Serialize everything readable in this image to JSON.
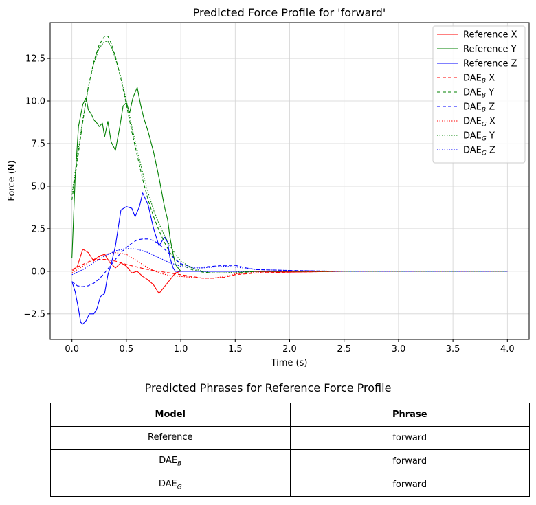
{
  "chart_data": {
    "type": "line",
    "title": "Predicted Force Profile for 'forward'",
    "xlabel": "Time (s)",
    "ylabel": "Force (N)",
    "xlim": [
      -0.2,
      4.2
    ],
    "ylim": [
      -4.0,
      14.6
    ],
    "xticks": [
      0.0,
      0.5,
      1.0,
      1.5,
      2.0,
      2.5,
      3.0,
      3.5,
      4.0
    ],
    "xtick_labels": [
      "0.0",
      "0.5",
      "1.0",
      "1.5",
      "2.0",
      "2.5",
      "3.0",
      "3.5",
      "4.0"
    ],
    "yticks": [
      -2.5,
      0.0,
      2.5,
      5.0,
      7.5,
      10.0,
      12.5
    ],
    "ytick_labels": [
      "−2.5",
      "0.0",
      "2.5",
      "5.0",
      "7.5",
      "10.0",
      "12.5"
    ],
    "grid": true,
    "legend_position": "top-right",
    "series": [
      {
        "name": "Reference X",
        "legend_main": "Reference X",
        "legend_sub": "",
        "legend_tail": "",
        "color": "#ff0000",
        "style": "solid",
        "x": [
          0.0,
          0.05,
          0.1,
          0.15,
          0.2,
          0.25,
          0.3,
          0.35,
          0.4,
          0.45,
          0.5,
          0.55,
          0.6,
          0.65,
          0.7,
          0.75,
          0.8,
          0.85,
          0.9,
          0.95,
          1.0,
          1.5,
          2.0,
          2.5,
          3.0,
          3.5,
          4.0
        ],
        "y": [
          0.0,
          0.3,
          1.3,
          1.1,
          0.6,
          0.9,
          1.0,
          0.5,
          0.2,
          0.5,
          0.3,
          -0.1,
          0.0,
          -0.3,
          -0.5,
          -0.8,
          -1.3,
          -0.9,
          -0.5,
          -0.1,
          0.0,
          0.0,
          -0.05,
          0.0,
          0.0,
          0.0,
          0.0
        ]
      },
      {
        "name": "Reference Y",
        "legend_main": "Reference Y",
        "legend_sub": "",
        "legend_tail": "",
        "color": "#008000",
        "style": "solid",
        "x": [
          0.0,
          0.03,
          0.06,
          0.1,
          0.13,
          0.15,
          0.18,
          0.2,
          0.23,
          0.25,
          0.28,
          0.3,
          0.33,
          0.36,
          0.4,
          0.44,
          0.47,
          0.5,
          0.53,
          0.56,
          0.6,
          0.63,
          0.66,
          0.7,
          0.75,
          0.8,
          0.85,
          0.88,
          0.9,
          0.93,
          0.95,
          1.0,
          1.5,
          2.0,
          2.5,
          3.0,
          3.5,
          4.0
        ],
        "y": [
          0.8,
          5.5,
          8.5,
          9.8,
          10.2,
          9.5,
          9.2,
          8.9,
          8.7,
          8.5,
          8.7,
          7.9,
          8.8,
          7.6,
          7.1,
          8.5,
          9.7,
          9.9,
          9.3,
          10.2,
          10.8,
          9.8,
          9.0,
          8.2,
          7.0,
          5.5,
          3.8,
          3.0,
          2.0,
          1.0,
          0.4,
          0.0,
          0.0,
          0.0,
          0.0,
          0.0,
          0.0,
          0.0
        ]
      },
      {
        "name": "Reference Z",
        "legend_main": "Reference Z",
        "legend_sub": "",
        "legend_tail": "",
        "color": "#0000ff",
        "style": "solid",
        "x": [
          0.0,
          0.03,
          0.06,
          0.08,
          0.1,
          0.13,
          0.16,
          0.2,
          0.23,
          0.26,
          0.3,
          0.33,
          0.36,
          0.4,
          0.45,
          0.5,
          0.55,
          0.58,
          0.62,
          0.65,
          0.7,
          0.75,
          0.8,
          0.85,
          0.88,
          0.9,
          0.93,
          0.95,
          1.0,
          1.5,
          2.0,
          2.5,
          3.0,
          3.5,
          4.0
        ],
        "y": [
          -0.6,
          -1.2,
          -2.2,
          -3.0,
          -3.1,
          -2.9,
          -2.5,
          -2.5,
          -2.2,
          -1.5,
          -1.3,
          -0.2,
          0.4,
          1.5,
          3.6,
          3.8,
          3.7,
          3.2,
          3.8,
          4.6,
          3.9,
          2.5,
          1.5,
          2.0,
          1.7,
          0.8,
          0.2,
          0.0,
          0.0,
          0.0,
          0.0,
          0.0,
          0.0,
          0.0,
          0.0
        ]
      },
      {
        "name": "DAE_B X",
        "legend_main": "DAE",
        "legend_sub": "B",
        "legend_tail": " X",
        "color": "#ff0000",
        "style": "dashed",
        "x": [
          0.0,
          0.1,
          0.2,
          0.3,
          0.4,
          0.5,
          0.6,
          0.7,
          0.8,
          0.9,
          1.0,
          1.1,
          1.2,
          1.3,
          1.4,
          1.5,
          1.7,
          2.0,
          2.5,
          3.0,
          3.5,
          4.0
        ],
        "y": [
          0.1,
          0.4,
          0.7,
          0.7,
          0.6,
          0.4,
          0.25,
          0.1,
          0.0,
          -0.1,
          -0.2,
          -0.3,
          -0.4,
          -0.4,
          -0.35,
          -0.2,
          -0.1,
          -0.05,
          0.0,
          0.0,
          0.0,
          0.0
        ]
      },
      {
        "name": "DAE_B Y",
        "legend_main": "DAE",
        "legend_sub": "B",
        "legend_tail": " Y",
        "color": "#008000",
        "style": "dashed",
        "x": [
          0.0,
          0.05,
          0.1,
          0.15,
          0.2,
          0.25,
          0.3,
          0.33,
          0.36,
          0.4,
          0.45,
          0.5,
          0.55,
          0.6,
          0.65,
          0.7,
          0.75,
          0.8,
          0.85,
          0.9,
          0.95,
          1.0,
          1.1,
          1.2,
          1.3,
          1.4,
          1.5,
          1.7,
          2.0,
          2.5,
          3.0,
          3.5,
          4.0
        ],
        "y": [
          4.2,
          6.5,
          8.8,
          10.8,
          12.3,
          13.3,
          13.8,
          13.8,
          13.4,
          12.6,
          11.3,
          9.8,
          8.2,
          6.8,
          5.4,
          4.2,
          3.2,
          2.4,
          1.7,
          1.1,
          0.7,
          0.4,
          0.1,
          -0.05,
          -0.1,
          -0.1,
          -0.1,
          0.0,
          0.0,
          0.0,
          0.0,
          0.0,
          0.0
        ]
      },
      {
        "name": "DAE_B Z",
        "legend_main": "DAE",
        "legend_sub": "B",
        "legend_tail": " Z",
        "color": "#0000ff",
        "style": "dashed",
        "x": [
          0.0,
          0.05,
          0.1,
          0.15,
          0.2,
          0.25,
          0.3,
          0.35,
          0.4,
          0.45,
          0.5,
          0.55,
          0.6,
          0.65,
          0.7,
          0.75,
          0.8,
          0.85,
          0.9,
          0.95,
          1.0,
          1.1,
          1.2,
          1.3,
          1.4,
          1.5,
          1.6,
          1.7,
          2.0,
          2.5,
          3.0,
          3.5,
          4.0
        ],
        "y": [
          -0.6,
          -0.85,
          -0.9,
          -0.85,
          -0.7,
          -0.45,
          -0.1,
          0.3,
          0.7,
          1.1,
          1.4,
          1.65,
          1.85,
          1.9,
          1.9,
          1.8,
          1.6,
          1.3,
          1.0,
          0.7,
          0.45,
          0.25,
          0.25,
          0.3,
          0.35,
          0.35,
          0.2,
          0.1,
          0.05,
          0.0,
          0.0,
          0.0,
          0.0
        ]
      },
      {
        "name": "DAE_G X",
        "legend_main": "DAE",
        "legend_sub": "G",
        "legend_tail": " X",
        "color": "#ff0000",
        "style": "dotted",
        "x": [
          0.0,
          0.1,
          0.2,
          0.3,
          0.4,
          0.5,
          0.6,
          0.7,
          0.8,
          0.9,
          1.0,
          1.1,
          1.2,
          1.3,
          1.4,
          1.5,
          1.7,
          2.0,
          2.5,
          3.0,
          3.5,
          4.0
        ],
        "y": [
          -0.1,
          0.3,
          0.7,
          1.0,
          1.1,
          1.0,
          0.6,
          0.2,
          -0.1,
          -0.25,
          -0.3,
          -0.35,
          -0.4,
          -0.4,
          -0.3,
          -0.15,
          -0.05,
          0.0,
          0.0,
          0.0,
          0.0,
          0.0
        ]
      },
      {
        "name": "DAE_G Y",
        "legend_main": "DAE",
        "legend_sub": "G",
        "legend_tail": " Y",
        "color": "#008000",
        "style": "dotted",
        "x": [
          0.0,
          0.05,
          0.1,
          0.15,
          0.2,
          0.25,
          0.3,
          0.33,
          0.36,
          0.4,
          0.45,
          0.5,
          0.55,
          0.6,
          0.65,
          0.7,
          0.75,
          0.8,
          0.85,
          0.9,
          0.95,
          1.0,
          1.1,
          1.2,
          1.3,
          1.4,
          1.5,
          1.7,
          2.0,
          2.5,
          3.0,
          3.5,
          4.0
        ],
        "y": [
          4.5,
          6.8,
          8.9,
          10.8,
          12.2,
          13.1,
          13.5,
          13.5,
          13.2,
          12.5,
          11.4,
          10.0,
          8.5,
          7.1,
          5.8,
          4.6,
          3.6,
          2.8,
          2.1,
          1.5,
          1.0,
          0.6,
          0.2,
          0.0,
          -0.1,
          -0.1,
          -0.05,
          0.0,
          0.0,
          0.0,
          0.0,
          0.0,
          0.0
        ]
      },
      {
        "name": "DAE_G Z",
        "legend_main": "DAE",
        "legend_sub": "G",
        "legend_tail": " Z",
        "color": "#0000ff",
        "style": "dotted",
        "x": [
          0.0,
          0.1,
          0.2,
          0.3,
          0.4,
          0.5,
          0.6,
          0.7,
          0.8,
          0.9,
          1.0,
          1.1,
          1.2,
          1.3,
          1.4,
          1.5,
          1.7,
          2.0,
          2.5,
          3.0,
          3.5,
          4.0
        ],
        "y": [
          -0.2,
          0.1,
          0.5,
          0.9,
          1.2,
          1.35,
          1.3,
          1.1,
          0.8,
          0.5,
          0.3,
          0.2,
          0.2,
          0.25,
          0.3,
          0.25,
          0.1,
          0.05,
          0.0,
          0.0,
          0.0,
          0.0
        ]
      }
    ]
  },
  "table": {
    "title": "Predicted Phrases for Reference Force Profile",
    "headers": [
      "Model",
      "Phrase"
    ],
    "rows": [
      {
        "model_main": "Reference",
        "model_sub": "",
        "phrase": "forward"
      },
      {
        "model_main": "DAE",
        "model_sub": "B",
        "phrase": "forward"
      },
      {
        "model_main": "DAE",
        "model_sub": "G",
        "phrase": "forward"
      }
    ]
  }
}
